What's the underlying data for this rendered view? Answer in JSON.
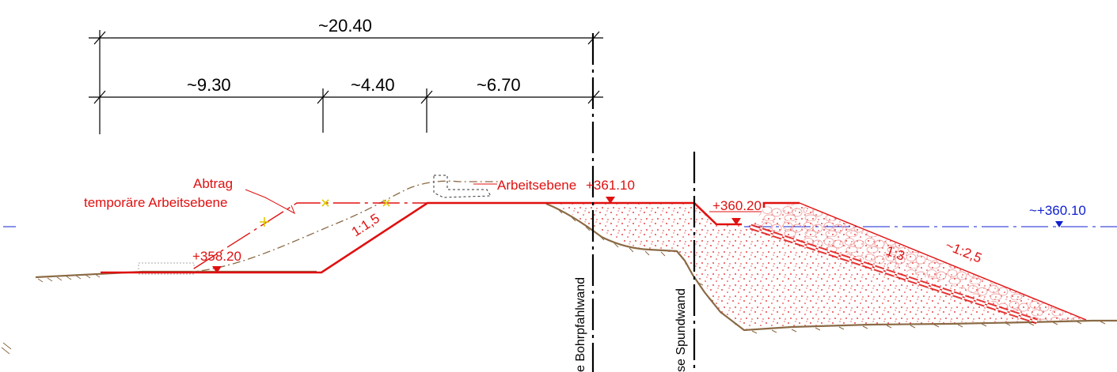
{
  "dimensions": {
    "total": "~20.40",
    "seg1": "~9.30",
    "seg2": "~4.40",
    "seg3": "~6.70"
  },
  "labels": {
    "abtrag": "Abtrag",
    "temp_work_level": "temporäre Arbeitsebene",
    "work_level": "Arbeitsebene",
    "work_level_elev": "+361.10",
    "lower_elev": "+358.20",
    "berm_elev": "+360.20",
    "water_elev": "~+360.10",
    "slope_15": "1:1,5",
    "slope_3": "1:3",
    "slope_25": "~1:2,5",
    "wall_bored_pile": "e Bohrpfahlwand",
    "wall_sheet_pile": "se Spundwand"
  },
  "colors": {
    "design_line": "#e01010",
    "terrain": "#8b6a45",
    "water_line": "#1020d0",
    "fill_dots": "#e01010",
    "marker": "#f0e020"
  }
}
